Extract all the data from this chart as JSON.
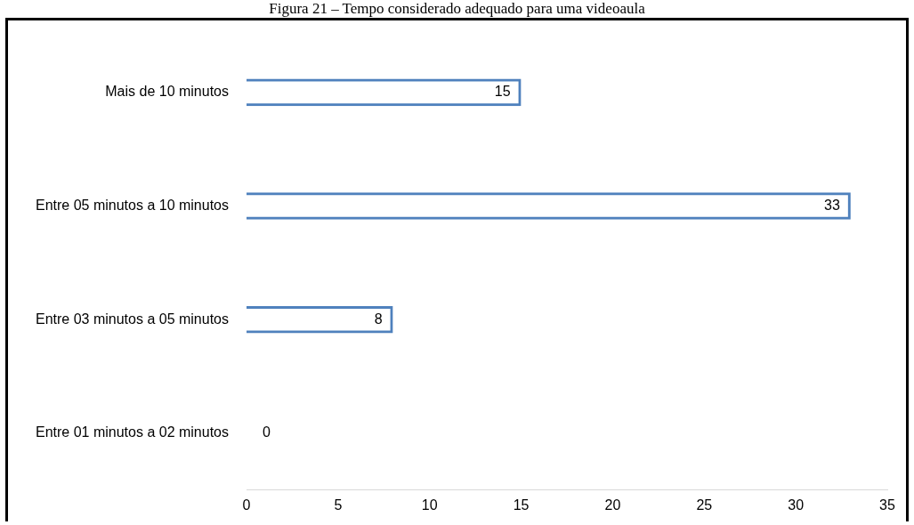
{
  "chart_data": {
    "type": "bar",
    "orientation": "horizontal",
    "title": "Figura 21 – Tempo considerado adequado para uma videoaula",
    "categories": [
      "Mais de 10 minutos",
      "Entre 05 minutos a 10 minutos",
      "Entre 03 minutos a 05 minutos",
      "Entre 01 minutos a 02 minutos"
    ],
    "values": [
      15,
      33,
      8,
      0
    ],
    "color": "#4f81bd",
    "xlim": [
      0,
      35
    ],
    "xticks": [
      0,
      5,
      10,
      15,
      20,
      25,
      30,
      35
    ],
    "grid": false,
    "legend": false,
    "data_labels": true
  }
}
